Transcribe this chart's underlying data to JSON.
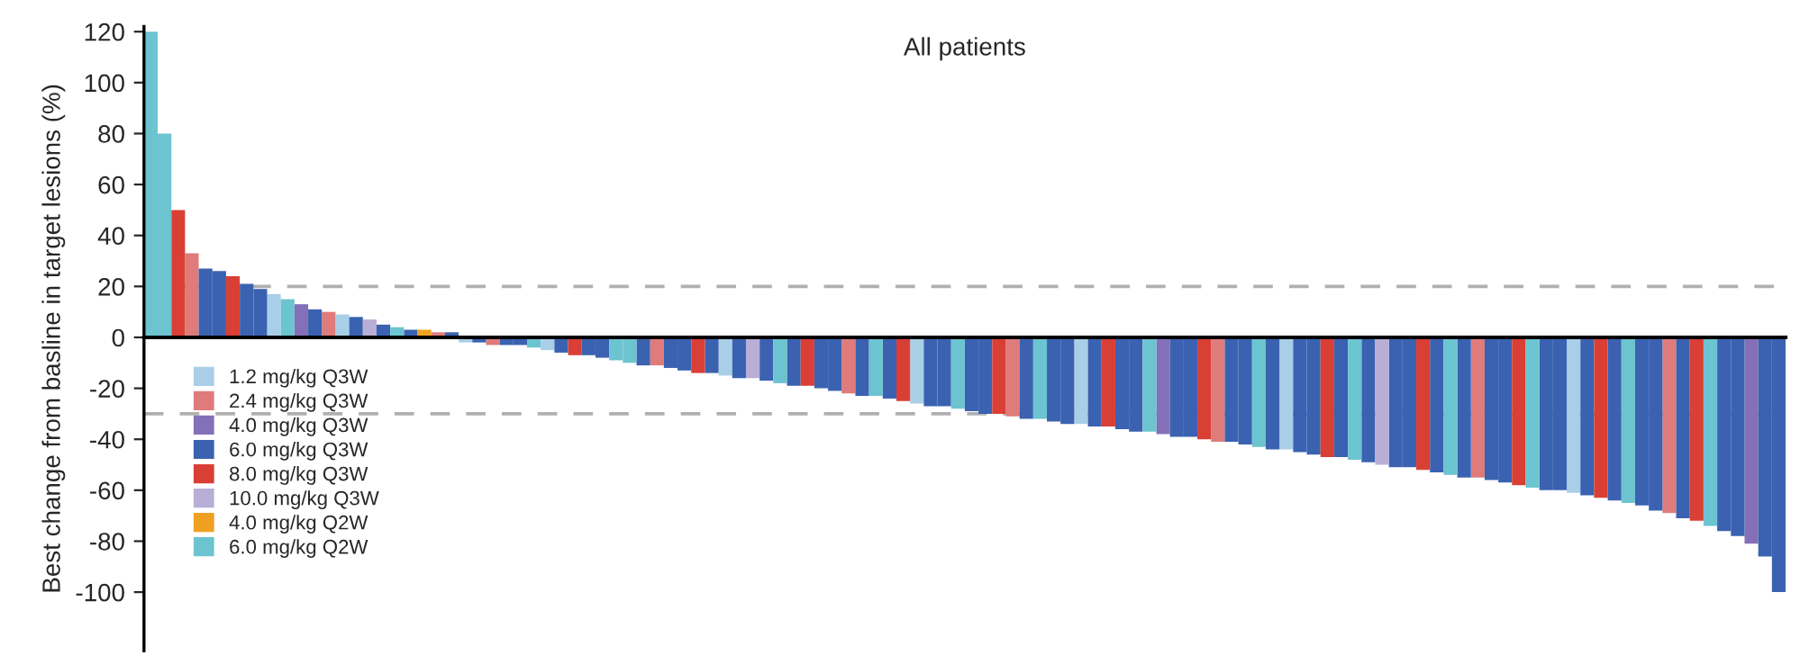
{
  "chart_data": {
    "type": "bar",
    "title": "All patients",
    "ylabel": "Best change from basline in target lesions (%)",
    "categories": [
      null,
      null,
      null,
      null,
      null,
      null,
      null,
      null,
      null,
      null,
      null,
      null,
      null,
      null,
      null,
      null,
      null,
      null,
      null,
      null,
      null,
      null,
      null,
      null,
      null,
      null,
      null,
      null,
      null,
      null,
      null,
      null,
      null,
      null,
      null,
      null,
      null,
      null,
      null,
      null,
      null,
      null,
      null,
      null,
      null,
      null,
      null,
      null,
      null,
      null,
      null,
      null,
      null,
      null,
      null,
      null,
      null,
      null,
      null,
      null,
      null,
      null,
      null,
      null,
      null,
      null,
      null,
      null,
      null,
      null,
      null,
      null,
      null,
      null,
      null,
      null,
      null,
      null,
      null,
      null,
      null,
      null,
      null,
      null,
      null,
      null,
      null,
      null,
      null,
      null,
      null,
      null,
      null,
      null,
      null,
      null,
      null,
      null,
      null,
      null,
      null,
      null,
      null,
      null,
      null,
      null,
      null,
      null,
      null,
      null,
      null,
      null,
      null,
      null,
      null,
      null,
      null,
      null,
      null,
      null
    ],
    "stacked": true,
    "series": [
      {
        "name": "1.2 mg/kg Q3W",
        "color": "#a9cfe8",
        "values": [
          null,
          null,
          null,
          null,
          null,
          null,
          null,
          null,
          null,
          17,
          null,
          null,
          null,
          null,
          9,
          null,
          null,
          null,
          null,
          null,
          null,
          null,
          null,
          -2,
          null,
          null,
          null,
          null,
          null,
          -5,
          null,
          null,
          null,
          null,
          null,
          null,
          null,
          null,
          null,
          null,
          null,
          null,
          -15,
          null,
          null,
          null,
          null,
          null,
          null,
          null,
          null,
          null,
          null,
          null,
          null,
          null,
          -26,
          null,
          null,
          null,
          null,
          null,
          null,
          null,
          null,
          null,
          null,
          null,
          -34,
          null,
          null,
          null,
          null,
          null,
          null,
          null,
          null,
          null,
          null,
          null,
          null,
          null,
          null,
          -44,
          null,
          null,
          null,
          null,
          null,
          null,
          null,
          null,
          null,
          null,
          null,
          null,
          null,
          null,
          null,
          null,
          null,
          null,
          null,
          null,
          -61,
          null,
          null,
          null,
          null,
          null,
          null,
          null,
          null,
          null,
          null,
          null,
          null,
          null,
          null,
          null
        ]
      },
      {
        "name": "2.4 mg/kg Q3W",
        "color": "#e07b7b",
        "values": [
          null,
          null,
          null,
          33,
          null,
          null,
          null,
          null,
          null,
          null,
          null,
          null,
          null,
          10,
          null,
          null,
          null,
          null,
          null,
          null,
          null,
          2,
          null,
          null,
          null,
          -3,
          null,
          null,
          null,
          null,
          null,
          null,
          null,
          null,
          null,
          null,
          null,
          -11,
          null,
          null,
          null,
          null,
          null,
          null,
          null,
          null,
          null,
          null,
          null,
          null,
          null,
          -22,
          null,
          null,
          null,
          null,
          null,
          null,
          null,
          null,
          null,
          null,
          null,
          -31,
          null,
          null,
          null,
          null,
          null,
          null,
          null,
          null,
          null,
          null,
          null,
          null,
          null,
          null,
          -41,
          null,
          null,
          null,
          null,
          null,
          null,
          null,
          null,
          null,
          null,
          null,
          null,
          null,
          null,
          null,
          null,
          null,
          null,
          -55,
          null,
          null,
          null,
          null,
          null,
          null,
          null,
          null,
          null,
          null,
          null,
          null,
          null,
          -69,
          null,
          null,
          null,
          null,
          null,
          null,
          null,
          null
        ]
      },
      {
        "name": "4.0 mg/kg Q3W",
        "color": "#8470b8",
        "values": [
          null,
          null,
          null,
          null,
          null,
          null,
          null,
          null,
          null,
          null,
          null,
          13,
          null,
          null,
          null,
          null,
          null,
          null,
          null,
          null,
          null,
          null,
          null,
          null,
          null,
          null,
          null,
          null,
          null,
          null,
          null,
          null,
          null,
          null,
          null,
          null,
          null,
          null,
          null,
          null,
          null,
          null,
          null,
          null,
          null,
          null,
          null,
          null,
          null,
          null,
          null,
          null,
          null,
          null,
          null,
          null,
          null,
          null,
          null,
          null,
          null,
          null,
          null,
          null,
          null,
          null,
          null,
          null,
          null,
          null,
          null,
          null,
          null,
          null,
          -38,
          null,
          null,
          null,
          null,
          null,
          null,
          null,
          null,
          null,
          null,
          null,
          null,
          null,
          null,
          null,
          null,
          null,
          null,
          null,
          null,
          null,
          null,
          null,
          null,
          null,
          null,
          null,
          null,
          null,
          null,
          null,
          null,
          null,
          null,
          null,
          null,
          null,
          null,
          null,
          null,
          null,
          null,
          -81,
          null,
          null
        ]
      },
      {
        "name": "6.0 mg/kg Q3W",
        "color": "#3a62b0",
        "values": [
          null,
          null,
          null,
          null,
          27,
          26,
          null,
          21,
          19,
          null,
          null,
          null,
          11,
          null,
          null,
          8,
          null,
          5,
          null,
          3,
          null,
          null,
          2,
          null,
          -2,
          null,
          -3,
          -3,
          null,
          null,
          -6,
          null,
          -7,
          -8,
          null,
          null,
          -11,
          null,
          -12,
          -13,
          null,
          -14,
          null,
          -16,
          null,
          -17,
          null,
          -19,
          null,
          -20,
          -21,
          null,
          -23,
          null,
          -24,
          null,
          null,
          -27,
          -27,
          null,
          -29,
          -30,
          null,
          null,
          -32,
          null,
          -33,
          -34,
          null,
          -35,
          null,
          -36,
          -37,
          null,
          null,
          -39,
          -39,
          null,
          null,
          -41,
          -42,
          null,
          -44,
          null,
          -45,
          -46,
          null,
          -47,
          null,
          -49,
          null,
          -51,
          -51,
          null,
          -53,
          null,
          -55,
          null,
          -56,
          -57,
          null,
          null,
          -60,
          -60,
          null,
          -62,
          null,
          -64,
          null,
          -66,
          -68,
          null,
          -71,
          null,
          null,
          -76,
          -78,
          null,
          -86,
          -100
        ]
      },
      {
        "name": "8.0 mg/kg Q3W",
        "color": "#d93f35",
        "values": [
          null,
          null,
          50,
          null,
          null,
          null,
          24,
          null,
          null,
          null,
          null,
          null,
          null,
          null,
          null,
          null,
          null,
          null,
          null,
          null,
          null,
          null,
          null,
          null,
          null,
          null,
          null,
          null,
          null,
          null,
          null,
          -7,
          null,
          null,
          null,
          null,
          null,
          null,
          null,
          null,
          -14,
          null,
          null,
          null,
          null,
          null,
          null,
          null,
          -19,
          null,
          null,
          null,
          null,
          null,
          null,
          -25,
          null,
          null,
          null,
          null,
          null,
          null,
          -30,
          null,
          null,
          null,
          null,
          null,
          null,
          null,
          -35,
          null,
          null,
          null,
          null,
          null,
          null,
          -40,
          null,
          null,
          null,
          null,
          null,
          null,
          null,
          null,
          -47,
          null,
          null,
          null,
          null,
          null,
          null,
          -52,
          null,
          null,
          null,
          null,
          null,
          null,
          -58,
          null,
          null,
          null,
          null,
          null,
          -63,
          null,
          null,
          null,
          null,
          null,
          null,
          -72,
          null,
          null,
          null,
          null,
          null,
          null
        ]
      },
      {
        "name": "10.0 mg/kg Q3W",
        "color": "#b8aed6",
        "values": [
          null,
          null,
          null,
          null,
          null,
          null,
          null,
          null,
          null,
          null,
          null,
          null,
          null,
          null,
          null,
          null,
          7,
          null,
          null,
          null,
          null,
          null,
          null,
          null,
          null,
          null,
          null,
          null,
          null,
          null,
          null,
          null,
          null,
          null,
          null,
          null,
          null,
          null,
          null,
          null,
          null,
          null,
          null,
          null,
          -16,
          null,
          null,
          null,
          null,
          null,
          null,
          null,
          null,
          null,
          null,
          null,
          null,
          null,
          null,
          null,
          null,
          null,
          null,
          null,
          null,
          null,
          null,
          null,
          null,
          null,
          null,
          null,
          null,
          null,
          null,
          null,
          null,
          null,
          null,
          null,
          null,
          null,
          null,
          null,
          null,
          null,
          null,
          null,
          null,
          null,
          -50,
          null,
          null,
          null,
          null,
          null,
          null,
          null,
          null,
          null,
          null,
          null,
          null,
          null,
          null,
          null,
          null,
          null,
          null,
          null,
          null,
          null,
          null,
          null,
          null,
          null,
          null,
          null,
          null,
          null
        ]
      },
      {
        "name": "4.0 mg/kg Q2W",
        "color": "#f0a020",
        "values": [
          null,
          null,
          null,
          null,
          null,
          null,
          null,
          null,
          null,
          null,
          null,
          null,
          null,
          null,
          null,
          null,
          null,
          null,
          null,
          null,
          3,
          null,
          null,
          null,
          null,
          null,
          null,
          null,
          null,
          null,
          null,
          null,
          null,
          null,
          null,
          null,
          null,
          null,
          null,
          null,
          null,
          null,
          null,
          null,
          null,
          null,
          null,
          null,
          null,
          null,
          null,
          null,
          null,
          null,
          null,
          null,
          null,
          null,
          null,
          null,
          null,
          null,
          null,
          null,
          null,
          null,
          null,
          null,
          null,
          null,
          null,
          null,
          null,
          null,
          null,
          null,
          null,
          null,
          null,
          null,
          null,
          null,
          null,
          null,
          null,
          null,
          null,
          null,
          null,
          null,
          null,
          null,
          null,
          null,
          null,
          null,
          null,
          null,
          null,
          null,
          null,
          null,
          null,
          null,
          null,
          null,
          null,
          null,
          null,
          null,
          null,
          null,
          null,
          null,
          null,
          null,
          null,
          null,
          null,
          null
        ]
      },
      {
        "name": "6.0 mg/kg Q2W",
        "color": "#6cc4d0",
        "values": [
          120,
          80,
          null,
          null,
          null,
          null,
          null,
          null,
          null,
          null,
          15,
          null,
          null,
          null,
          null,
          null,
          null,
          null,
          4,
          null,
          null,
          null,
          null,
          null,
          null,
          null,
          null,
          null,
          -4,
          null,
          null,
          null,
          null,
          null,
          -9,
          -10,
          null,
          null,
          null,
          null,
          null,
          null,
          null,
          null,
          null,
          null,
          -18,
          null,
          null,
          null,
          null,
          null,
          null,
          -23,
          null,
          null,
          null,
          null,
          null,
          -28,
          null,
          null,
          null,
          null,
          null,
          -32,
          null,
          null,
          null,
          null,
          null,
          null,
          null,
          -37,
          null,
          null,
          null,
          null,
          null,
          null,
          null,
          -43,
          null,
          null,
          null,
          null,
          null,
          null,
          -48,
          null,
          null,
          null,
          null,
          null,
          null,
          -54,
          null,
          null,
          null,
          null,
          null,
          -59,
          null,
          null,
          null,
          null,
          null,
          null,
          -65,
          null,
          null,
          null,
          null,
          null,
          -74,
          null,
          null,
          null,
          null,
          null
        ]
      }
    ],
    "ylim": [
      -123,
      122
    ],
    "yticks": [
      -100,
      -80,
      -60,
      -40,
      -20,
      0,
      20,
      40,
      60,
      80,
      100,
      120
    ],
    "ref_lines": [
      {
        "axis": "y",
        "value": 20,
        "color": "#b0b0b0",
        "line_style": "dashed"
      },
      {
        "axis": "y",
        "value": -30,
        "color": "#b0b0b0",
        "line_style": "dashed"
      }
    ],
    "tick_labels": "y",
    "grid": false,
    "legend": "bottom left"
  }
}
